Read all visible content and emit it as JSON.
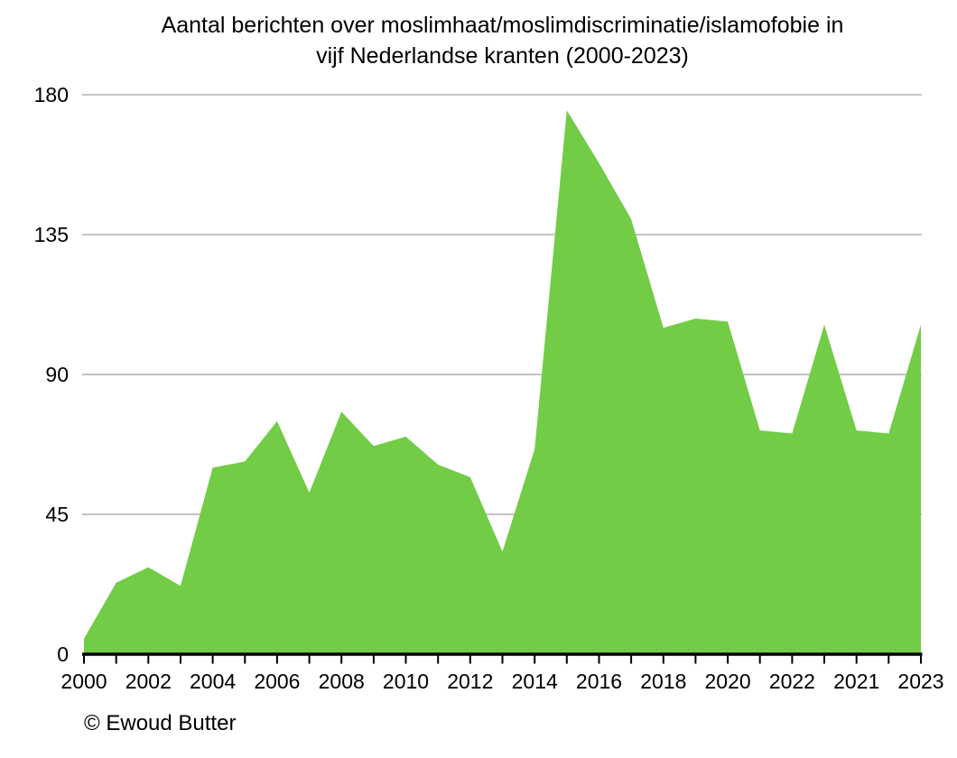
{
  "page": {
    "title_line1": "Aantal berichten over moslimhaat/moslimdiscriminatie/islamofobie in",
    "title_line2": "vijf Nederlandse kranten (2000-2023)",
    "copyright": "© Ewoud Butter"
  },
  "chart_data": {
    "type": "area",
    "title": "Aantal berichten over moslimhaat/moslimdiscriminatie/islamofobie in vijf Nederlandse kranten (2000-2023)",
    "xlabel": "",
    "ylabel": "",
    "ylim": [
      0,
      180
    ],
    "y_ticks": [
      0,
      45,
      90,
      135,
      180
    ],
    "grid": "horizontal gridlines at each y tick",
    "legend": "none",
    "x_tick_labels": [
      "2000",
      "2002",
      "2004",
      "2006",
      "2008",
      "2010",
      "2012",
      "2014",
      "2016",
      "2018",
      "2020",
      "2022",
      "2021",
      "2023"
    ],
    "x_label_every_n_ticks": 2,
    "values": [
      5,
      23,
      28,
      22,
      60,
      62,
      75,
      52,
      78,
      67,
      70,
      61,
      57,
      33,
      66,
      175,
      158,
      140,
      105,
      108,
      107,
      72,
      71,
      106,
      72,
      71,
      106
    ],
    "values_note": "27 points (one per axis tick), values estimated from gridlines; x labels appear under every second tick exactly as printed in the source, including the 2022, 2021, 2023 order",
    "colors": {
      "fill": "#72cc46",
      "gridline": "#c4c4c4",
      "axis": "#000000",
      "text": "#000000"
    }
  }
}
